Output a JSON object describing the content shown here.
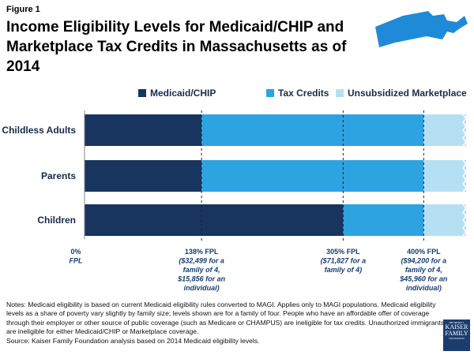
{
  "figure_label": "Figure 1",
  "title": "Income Eligibility Levels for Medicaid/CHIP and Marketplace Tax Credits in Massachusetts as of 2014",
  "colors": {
    "medicaid": "#17355e",
    "tax": "#2da3e2",
    "unsub": "#b5e0f4",
    "map": "#1f8ad8"
  },
  "chart_data": {
    "type": "bar",
    "orientation": "horizontal-stacked",
    "categories": [
      "Childless Adults",
      "Parents",
      "Children"
    ],
    "series": [
      {
        "name": "Medicaid/CHIP",
        "values": [
          138,
          138,
          305
        ]
      },
      {
        "name": "Tax Credits",
        "values": [
          262,
          262,
          95
        ]
      },
      {
        "name": "Unsubsidized Marketplace",
        "values": [
          50,
          50,
          50
        ]
      }
    ],
    "xlim": [
      0,
      450
    ],
    "reference_lines": [
      {
        "x": 0,
        "label": [
          "0%",
          "FPL"
        ]
      },
      {
        "x": 138,
        "label": [
          "138% FPL",
          "($32,499 for a",
          "family of 4,",
          "$15,856 for an",
          "individual)"
        ]
      },
      {
        "x": 305,
        "label": [
          "305% FPL",
          "($71,827 for a",
          "family of 4)"
        ]
      },
      {
        "x": 400,
        "label": [
          "400% FPL",
          "($94,200 for a",
          "family of 4,",
          "$45,960 for an",
          "individual)"
        ]
      }
    ],
    "legend_position": "top"
  },
  "notes": "Notes: Medicaid eligibility is based on current Medicaid eligibility rules converted to MAGI. Applies only to MAGI populations. Medicaid eligibility levels as a share of poverty vary slightly by family size; levels shown are for a family of four. People who have an affordable offer of coverage through their employer or other source of public coverage (such as Medicare or CHAMPUS) are ineligible for tax credits. Unauthorized immigrants are ineligible for either Medicaid/CHIP or Marketplace coverage.",
  "source": "Source: Kaiser Family Foundation analysis based on 2014 Medicaid eligibility levels.",
  "logo": {
    "line1": "THE HENRY J.",
    "line2": "KAISER",
    "line3": "FAMILY",
    "line4": "FOUNDATION"
  }
}
